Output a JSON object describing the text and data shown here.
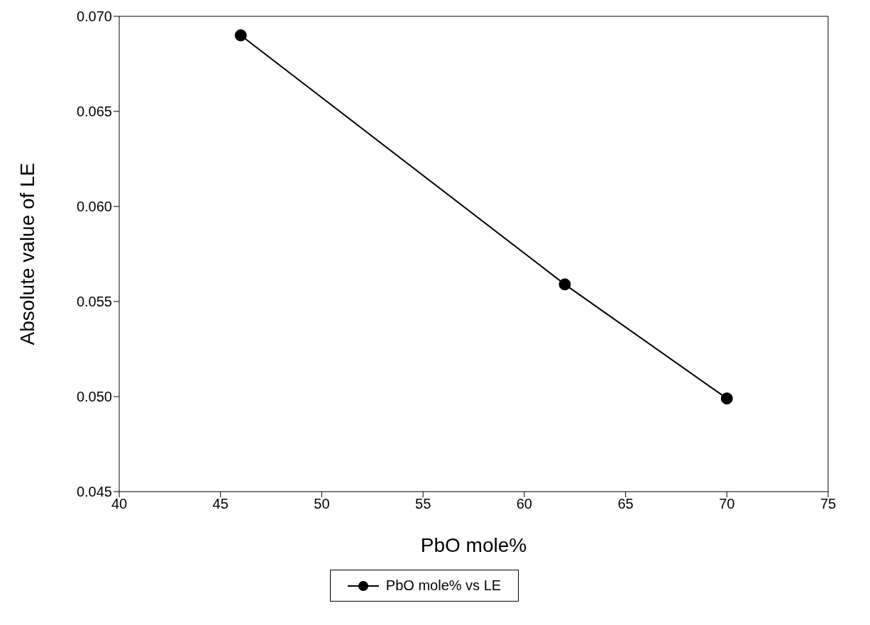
{
  "chart_data": {
    "type": "line",
    "xlabel": "PbO mole%",
    "ylabel": "Absolute value of LE",
    "series": [
      {
        "name": "PbO mole% vs LE",
        "color": "#000000",
        "x": [
          46,
          62,
          70
        ],
        "values": [
          0.069,
          0.0559,
          0.0499
        ]
      }
    ],
    "xlim": [
      40,
      75
    ],
    "xticks": [
      40,
      45,
      50,
      55,
      60,
      65,
      70,
      75
    ],
    "ylim": [
      0.045,
      0.07
    ],
    "yticks": [
      {
        "value": 0.045,
        "label": "0.045"
      },
      {
        "value": 0.05,
        "label": "0.050"
      },
      {
        "value": 0.055,
        "label": "0.055"
      },
      {
        "value": 0.06,
        "label": "0.060"
      },
      {
        "value": 0.065,
        "label": "0.065"
      },
      {
        "value": 0.07,
        "label": "0.070"
      }
    ],
    "grid": false,
    "legend": "bottom",
    "marker": "circle",
    "line_style": "solid"
  }
}
